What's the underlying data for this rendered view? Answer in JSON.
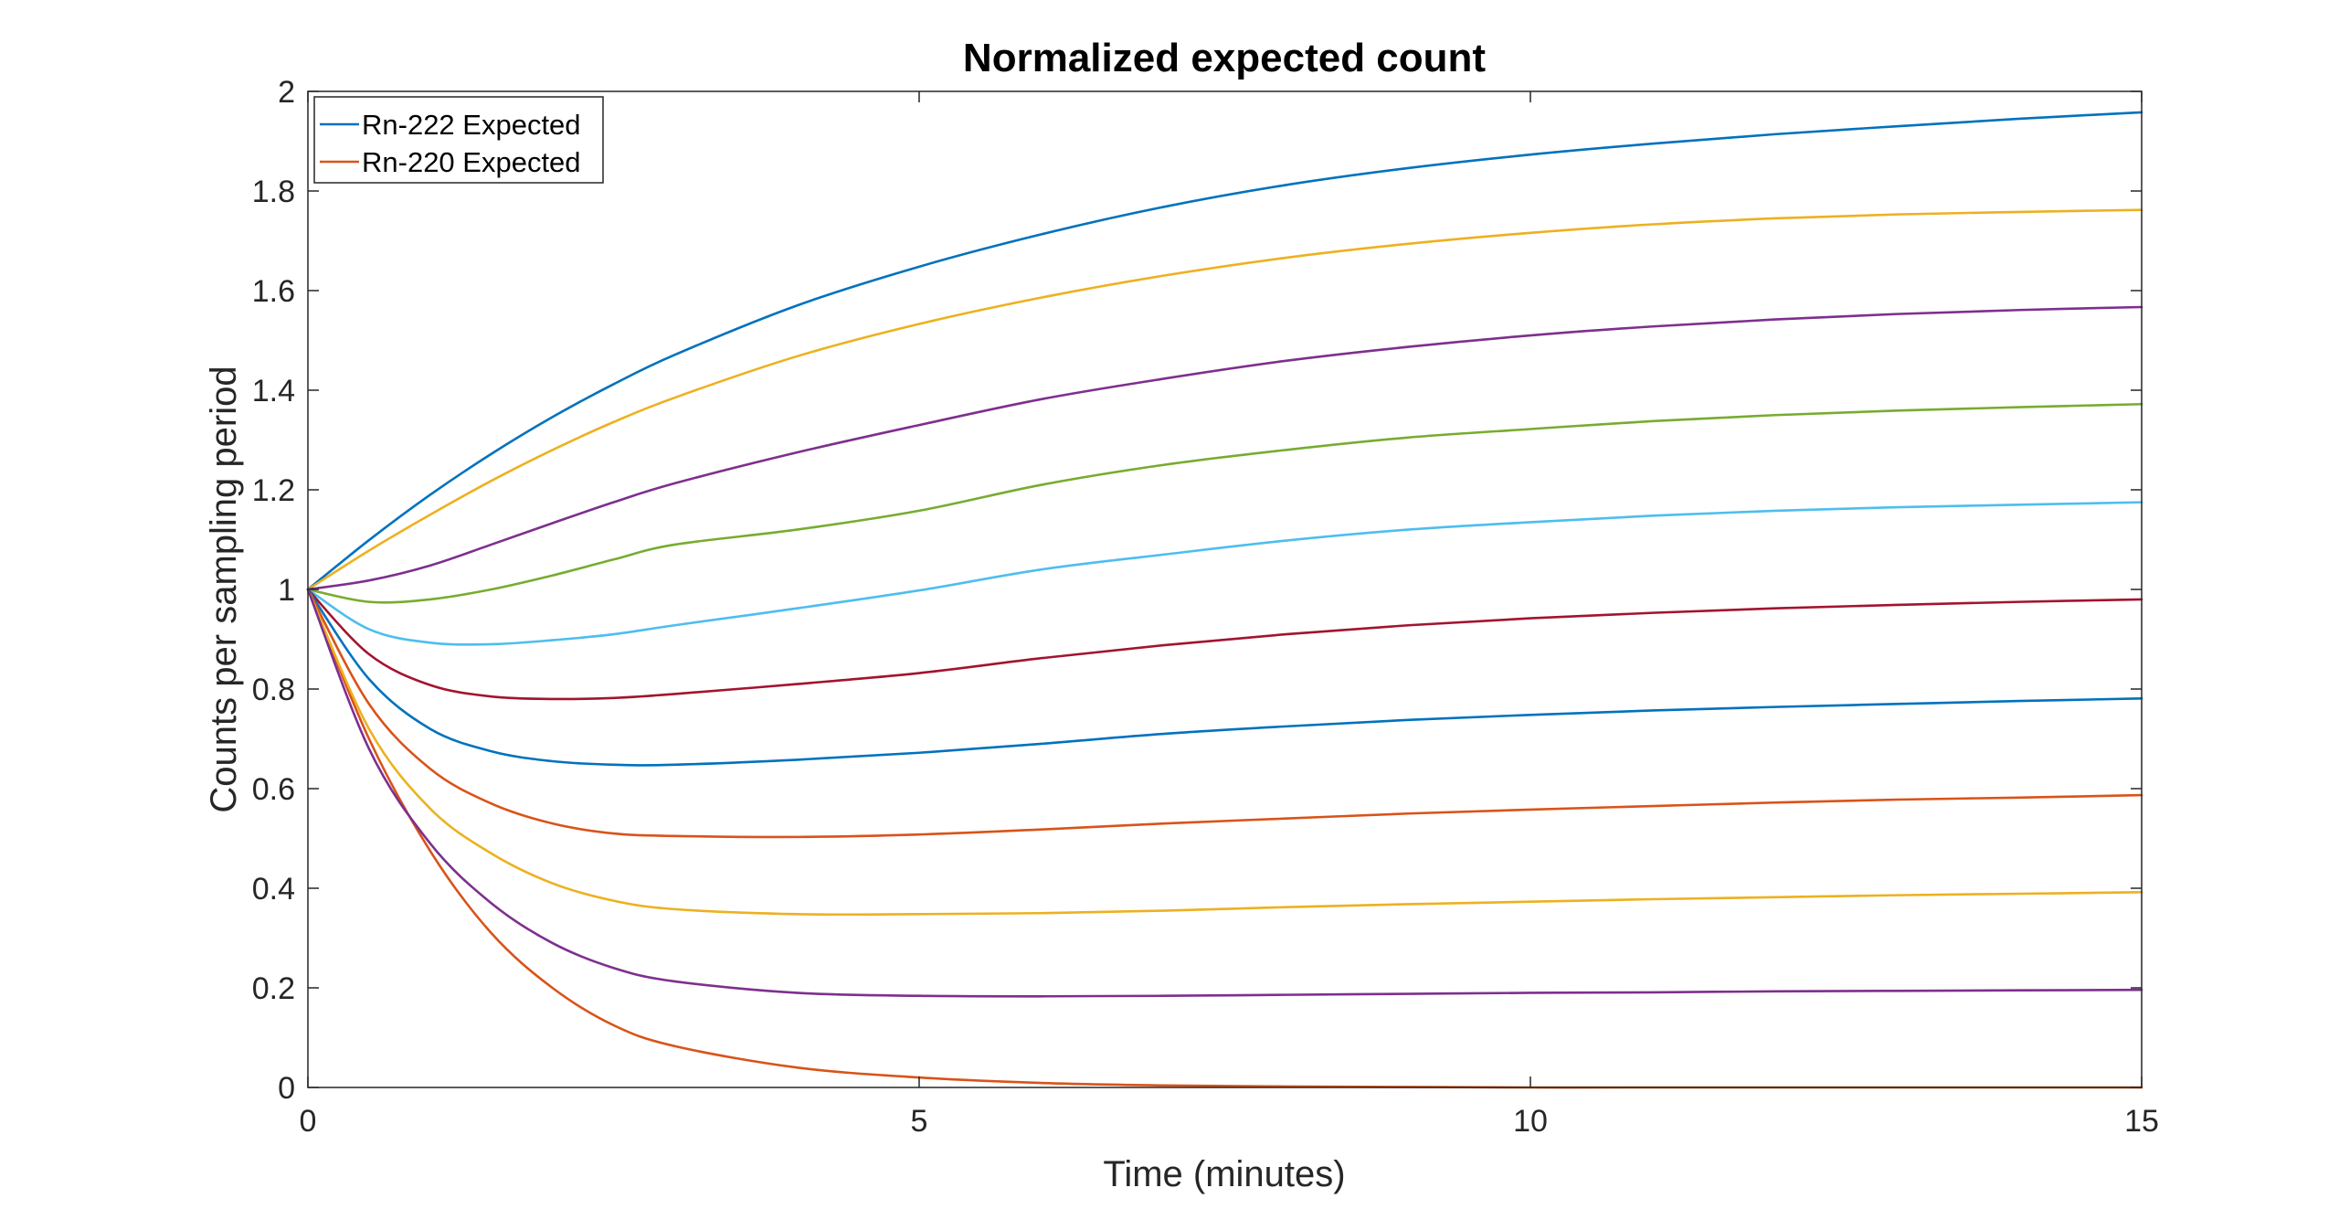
{
  "chart_data": {
    "type": "line",
    "title": "Normalized expected count",
    "xlabel": "Time (minutes)",
    "ylabel": "Counts per sampling period",
    "xlim": [
      0,
      15
    ],
    "ylim": [
      0,
      2
    ],
    "xticks": [
      0,
      5,
      10,
      15
    ],
    "xtick_labels": [
      "0",
      "5",
      "10",
      "15"
    ],
    "yticks": [
      0,
      0.2,
      0.4,
      0.6,
      0.8,
      1,
      1.2,
      1.4,
      1.6,
      1.8,
      2
    ],
    "ytick_labels": [
      "0",
      "0.2",
      "0.4",
      "0.6",
      "0.8",
      "1",
      "1.2",
      "1.4",
      "1.6",
      "1.8",
      "2"
    ],
    "grid": false,
    "legend_position": "top-left",
    "x": [
      0,
      0.5,
      1,
      1.5,
      2,
      2.5,
      3,
      4,
      5,
      6,
      7,
      8,
      9,
      10,
      11,
      12,
      13,
      14,
      15
    ],
    "series": [
      {
        "name": "Rn-222 Expected",
        "color": "#0072BD",
        "values": [
          1.0,
          1.099,
          1.19,
          1.272,
          1.346,
          1.412,
          1.471,
          1.57,
          1.648,
          1.713,
          1.768,
          1.812,
          1.846,
          1.873,
          1.895,
          1.914,
          1.93,
          1.945,
          1.958
        ]
      },
      {
        "name": "Rn-220 Expected",
        "color": "#D95319",
        "values": [
          1.0,
          0.7,
          0.475,
          0.31,
          0.2,
          0.125,
          0.083,
          0.04,
          0.02,
          0.009,
          0.004,
          0.002,
          0.001,
          0.0,
          0.0,
          0.0,
          0.0,
          0.0,
          0.0
        ]
      },
      {
        "color": "#EDB120",
        "values": [
          1.0,
          1.078,
          1.15,
          1.218,
          1.28,
          1.336,
          1.385,
          1.468,
          1.533,
          1.586,
          1.63,
          1.666,
          1.694,
          1.716,
          1.733,
          1.745,
          1.753,
          1.758,
          1.762
        ]
      },
      {
        "color": "#7E2F8E",
        "values": [
          1.0,
          1.018,
          1.048,
          1.09,
          1.133,
          1.175,
          1.213,
          1.275,
          1.33,
          1.382,
          1.423,
          1.459,
          1.487,
          1.51,
          1.528,
          1.542,
          1.553,
          1.561,
          1.567
        ]
      },
      {
        "color": "#77AC30",
        "values": [
          1.0,
          0.975,
          0.98,
          1.0,
          1.028,
          1.06,
          1.09,
          1.12,
          1.158,
          1.21,
          1.25,
          1.28,
          1.305,
          1.322,
          1.338,
          1.35,
          1.359,
          1.366,
          1.372
        ]
      },
      {
        "color": "#4DBEEE",
        "values": [
          1.0,
          0.92,
          0.893,
          0.89,
          0.898,
          0.91,
          0.928,
          0.962,
          0.998,
          1.04,
          1.07,
          1.098,
          1.12,
          1.135,
          1.148,
          1.158,
          1.165,
          1.17,
          1.175
        ]
      },
      {
        "color": "#A2142F",
        "values": [
          1.0,
          0.87,
          0.808,
          0.785,
          0.78,
          0.782,
          0.79,
          0.81,
          0.832,
          0.862,
          0.888,
          0.91,
          0.928,
          0.942,
          0.953,
          0.962,
          0.969,
          0.975,
          0.98
        ]
      },
      {
        "color": "#0072BD",
        "values": [
          1.0,
          0.82,
          0.72,
          0.675,
          0.655,
          0.648,
          0.648,
          0.658,
          0.672,
          0.69,
          0.71,
          0.725,
          0.738,
          0.748,
          0.757,
          0.764,
          0.77,
          0.776,
          0.781
        ]
      },
      {
        "color": "#D95319",
        "values": [
          1.0,
          0.77,
          0.64,
          0.57,
          0.53,
          0.51,
          0.505,
          0.503,
          0.508,
          0.518,
          0.53,
          0.54,
          0.55,
          0.558,
          0.565,
          0.572,
          0.578,
          0.582,
          0.587
        ]
      },
      {
        "color": "#EDB120",
        "values": [
          1.0,
          0.72,
          0.56,
          0.47,
          0.41,
          0.375,
          0.358,
          0.348,
          0.348,
          0.35,
          0.355,
          0.362,
          0.368,
          0.373,
          0.378,
          0.382,
          0.386,
          0.389,
          0.392
        ]
      },
      {
        "color": "#7E2F8E",
        "values": [
          1.0,
          0.68,
          0.49,
          0.37,
          0.29,
          0.24,
          0.213,
          0.19,
          0.184,
          0.183,
          0.184,
          0.186,
          0.188,
          0.19,
          0.191,
          0.193,
          0.194,
          0.195,
          0.196
        ]
      }
    ]
  }
}
